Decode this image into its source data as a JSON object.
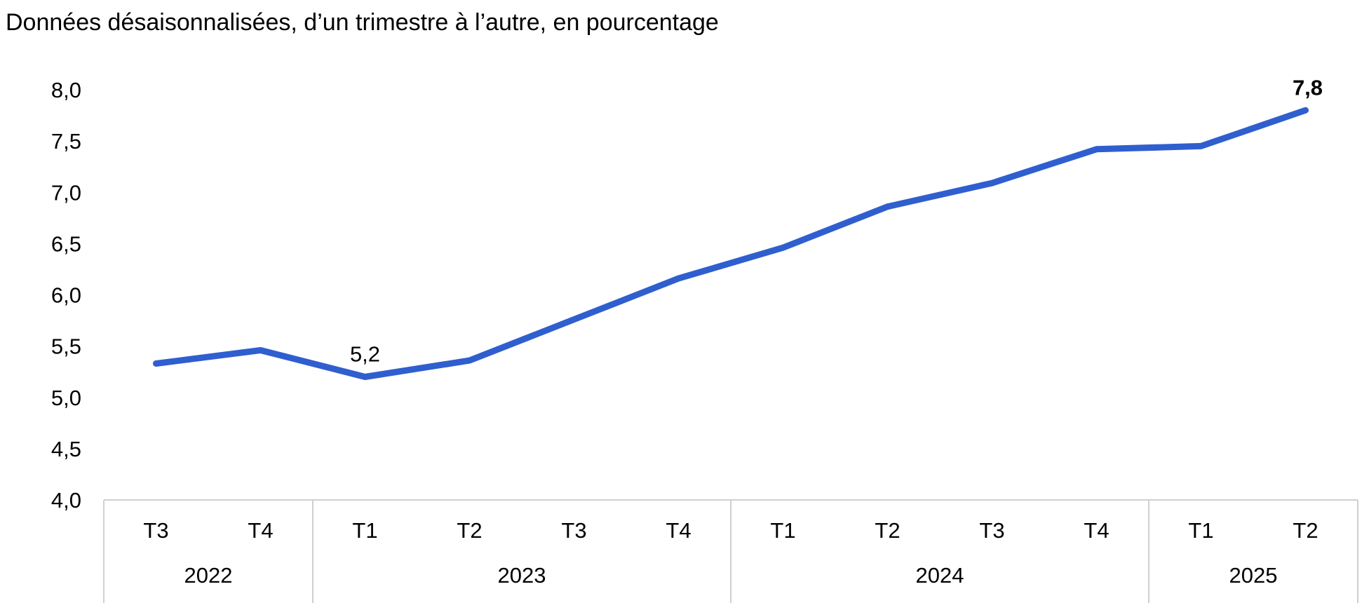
{
  "chart_data": {
    "type": "line",
    "title": "Données désaisonnalisées, d’un trimestre à l’autre, en pourcentage",
    "xlabel": "",
    "ylabel": "",
    "ylim": [
      4.0,
      8.0
    ],
    "y_ticks": [
      "4,0",
      "4,5",
      "5,0",
      "5,5",
      "6,0",
      "6,5",
      "7,0",
      "7,5",
      "8,0"
    ],
    "grid": false,
    "x_categories": [
      "T3",
      "T4",
      "T1",
      "T2",
      "T3",
      "T4",
      "T1",
      "T2",
      "T3",
      "T4",
      "T1",
      "T2"
    ],
    "x_groups": [
      {
        "label": "2022",
        "span": 2
      },
      {
        "label": "2023",
        "span": 4
      },
      {
        "label": "2024",
        "span": 4
      },
      {
        "label": "2025",
        "span": 2
      }
    ],
    "series": [
      {
        "values": [
          5.33,
          5.46,
          5.2,
          5.36,
          5.76,
          6.16,
          6.46,
          6.86,
          7.09,
          7.42,
          7.45,
          7.8
        ],
        "color": "#2F5FCF"
      }
    ],
    "annotations": [
      {
        "index": 2,
        "text": "5,2",
        "color": "#000000",
        "bold": false
      },
      {
        "index": 11,
        "text": "7,8",
        "color": "#2F5FCF",
        "bold": true
      }
    ],
    "axis_color": "#D0D0D0"
  }
}
